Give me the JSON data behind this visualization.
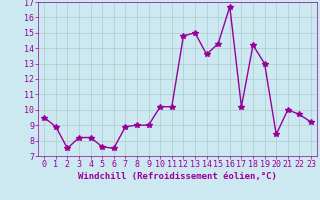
{
  "x": [
    0,
    1,
    2,
    3,
    4,
    5,
    6,
    7,
    8,
    9,
    10,
    11,
    12,
    13,
    14,
    15,
    16,
    17,
    18,
    19,
    20,
    21,
    22,
    23
  ],
  "y": [
    9.5,
    8.9,
    7.5,
    8.2,
    8.2,
    7.6,
    7.5,
    8.9,
    9.0,
    9.0,
    10.2,
    10.2,
    14.8,
    15.0,
    13.6,
    14.3,
    16.7,
    10.2,
    14.2,
    13.0,
    8.4,
    10.0,
    9.7,
    9.2
  ],
  "line_color": "#990099",
  "marker": "*",
  "marker_size": 4,
  "linewidth": 1.0,
  "bg_color": "#cce8f0",
  "grid_color": "#aacccc",
  "xlabel": "Windchill (Refroidissement éolien,°C)",
  "xlabel_fontsize": 6.5,
  "tick_fontsize": 6,
  "ylim": [
    7,
    17
  ],
  "xlim": [
    -0.5,
    23.5
  ],
  "yticks": [
    7,
    8,
    9,
    10,
    11,
    12,
    13,
    14,
    15,
    16,
    17
  ],
  "xticks": [
    0,
    1,
    2,
    3,
    4,
    5,
    6,
    7,
    8,
    9,
    10,
    11,
    12,
    13,
    14,
    15,
    16,
    17,
    18,
    19,
    20,
    21,
    22,
    23
  ]
}
